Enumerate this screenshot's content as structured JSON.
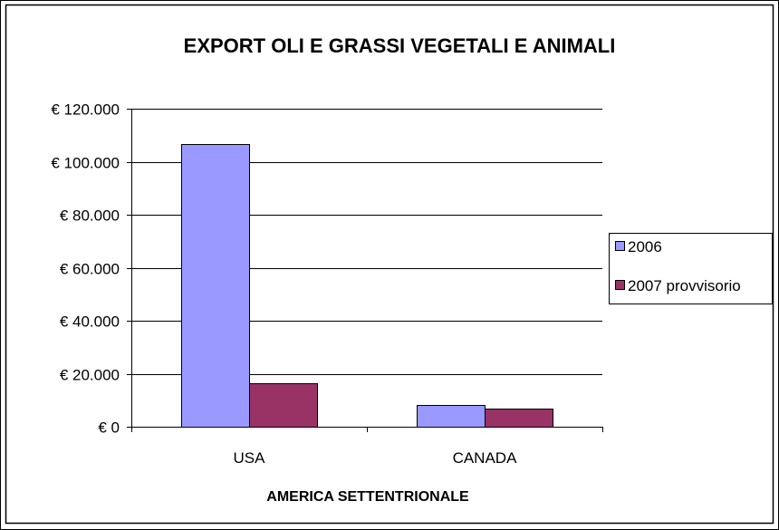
{
  "chart_data": {
    "type": "bar",
    "title": "EXPORT OLI E GRASSI VEGETALI E ANIMALI",
    "xlabel": "AMERICA SETTENTRIONALE",
    "ylabel": "",
    "categories": [
      "USA",
      "CANADA"
    ],
    "series": [
      {
        "name": "2006",
        "values": [
          106500,
          8200
        ],
        "color": "#9999ff"
      },
      {
        "name": "2007 provvisorio",
        "values": [
          16500,
          7000
        ],
        "color": "#993366"
      }
    ],
    "ylim": [
      0,
      120000
    ],
    "yticks": [
      0,
      20000,
      40000,
      60000,
      80000,
      100000,
      120000
    ],
    "ytick_labels": [
      "€ 0",
      "€ 20.000",
      "€ 40.000",
      "€ 60.000",
      "€ 80.000",
      "€ 100.000",
      "€ 120.000"
    ],
    "grid": true,
    "legend_position": "right",
    "plot_background": "#ffffff",
    "text_color": "#000000"
  }
}
